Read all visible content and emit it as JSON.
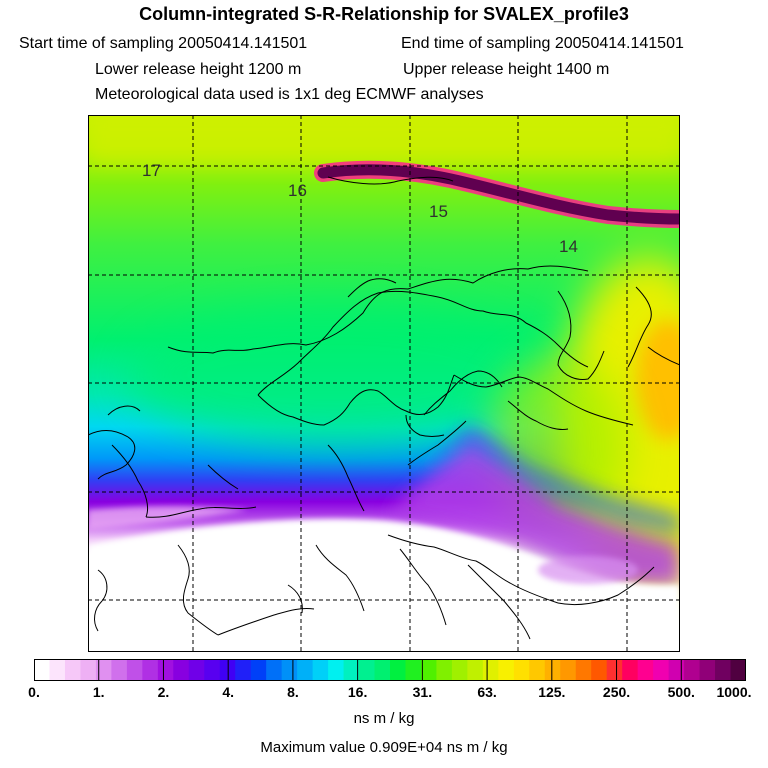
{
  "header": {
    "title": "Column-integrated S-R-Relationship for SVALEX_profile3",
    "start_time": "Start time of sampling 20050414.141501",
    "end_time": "End time of sampling 20050414.141501",
    "lower_height": "Lower release height 1200 m",
    "upper_height": "Upper release height 1400 m",
    "met_data": "Meteorological data used is 1x1 deg ECMWF analyses"
  },
  "map": {
    "trajectory_labels": [
      "17",
      "16",
      "15",
      "14"
    ]
  },
  "colorbar": {
    "tick_labels": [
      "0.",
      "1.",
      "2.",
      "4.",
      "8.",
      "16.",
      "31.",
      "63.",
      "125.",
      "250.",
      "500.",
      "1000."
    ],
    "units": "ns m / kg",
    "colors": [
      "#ffffff",
      "#fce4fc",
      "#f6c8f8",
      "#eeb0f4",
      "#e090f0",
      "#d070ec",
      "#c050e8",
      "#b030e4",
      "#a010e0",
      "#8800e0",
      "#7000e8",
      "#5800f0",
      "#4000f4",
      "#2020f8",
      "#0040f8",
      "#0070f8",
      "#0090f8",
      "#00b0f8",
      "#00d0f8",
      "#00f0f0",
      "#00f0c0",
      "#00f090",
      "#00f070",
      "#00f040",
      "#20f020",
      "#50f000",
      "#80f000",
      "#a0f000",
      "#c0f000",
      "#e0f000",
      "#f8f000",
      "#ffe000",
      "#ffc800",
      "#ffb000",
      "#ff9800",
      "#ff7800",
      "#ff5800",
      "#ff3030",
      "#ff0060",
      "#ff0090",
      "#f000b0",
      "#d000b0",
      "#b00090",
      "#900078",
      "#700060",
      "#500040"
    ]
  },
  "footer": {
    "maximum": "Maximum value  0.909E+04 ns m / kg"
  }
}
